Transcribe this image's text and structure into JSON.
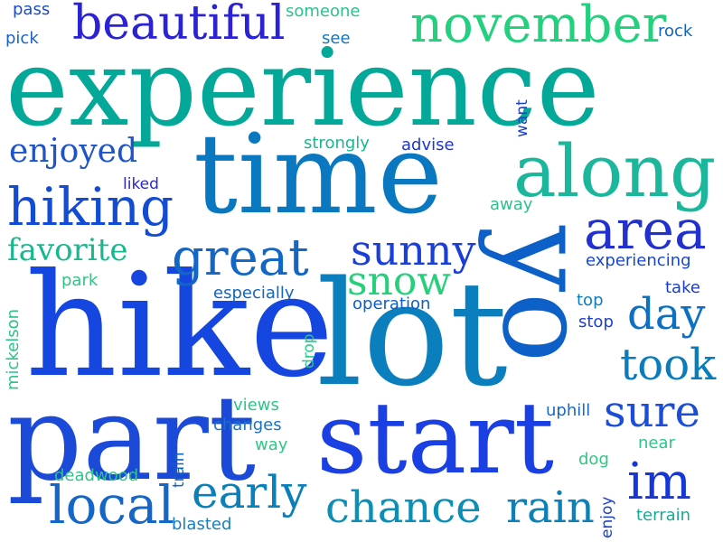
{
  "colors": {
    "teal": "#00a896",
    "teal_light": "#19c28a",
    "green": "#2ed27a",
    "blue": "#0050c8",
    "blue_deep": "#1a2fd6",
    "indigo": "#2a1ed0",
    "sky": "#0a7fbf",
    "mint": "#20c070"
  },
  "words": [
    {
      "id": "experience",
      "text": "experience"
    },
    {
      "id": "time",
      "text": "time"
    },
    {
      "id": "hike",
      "text": "hike"
    },
    {
      "id": "lot",
      "text": "lot"
    },
    {
      "id": "part",
      "text": "part"
    },
    {
      "id": "start",
      "text": "start"
    },
    {
      "id": "yo",
      "text": "yo"
    },
    {
      "id": "along",
      "text": "along"
    },
    {
      "id": "area",
      "text": "area"
    },
    {
      "id": "november",
      "text": "november"
    },
    {
      "id": "beautiful",
      "text": "beautiful"
    },
    {
      "id": "great",
      "text": "great"
    },
    {
      "id": "hiking",
      "text": "hiking"
    },
    {
      "id": "sunny",
      "text": "sunny"
    },
    {
      "id": "snow",
      "text": "snow"
    },
    {
      "id": "local",
      "text": "local"
    },
    {
      "id": "early",
      "text": "early"
    },
    {
      "id": "chance",
      "text": "chance"
    },
    {
      "id": "rain",
      "text": "rain"
    },
    {
      "id": "im",
      "text": "im"
    },
    {
      "id": "sure",
      "text": "sure"
    },
    {
      "id": "took",
      "text": "took"
    },
    {
      "id": "day",
      "text": "day"
    },
    {
      "id": "enjoyed",
      "text": "enjoyed"
    },
    {
      "id": "favorite",
      "text": "favorite"
    },
    {
      "id": "strongly",
      "text": "strongly"
    },
    {
      "id": "advise",
      "text": "advise"
    },
    {
      "id": "liked",
      "text": "liked"
    },
    {
      "id": "away",
      "text": "away"
    },
    {
      "id": "want",
      "text": "want"
    },
    {
      "id": "experiencing",
      "text": "experiencing"
    },
    {
      "id": "especially",
      "text": "especially"
    },
    {
      "id": "operation",
      "text": "operation"
    },
    {
      "id": "park",
      "text": "park"
    },
    {
      "id": "mickelson",
      "text": "mickelson"
    },
    {
      "id": "drop",
      "text": "drop"
    },
    {
      "id": "top",
      "text": "top"
    },
    {
      "id": "stop",
      "text": "stop"
    },
    {
      "id": "take",
      "text": "take"
    },
    {
      "id": "views",
      "text": "views"
    },
    {
      "id": "changes",
      "text": "changes"
    },
    {
      "id": "way",
      "text": "way"
    },
    {
      "id": "uphill",
      "text": "uphill"
    },
    {
      "id": "near",
      "text": "near"
    },
    {
      "id": "dog",
      "text": "dog"
    },
    {
      "id": "deadwood",
      "text": "deadwood"
    },
    {
      "id": "train",
      "text": "train"
    },
    {
      "id": "blasted",
      "text": "blasted"
    },
    {
      "id": "enjoy",
      "text": "enjoy"
    },
    {
      "id": "terrain",
      "text": "terrain"
    },
    {
      "id": "pass",
      "text": "pass"
    },
    {
      "id": "pick",
      "text": "pick"
    },
    {
      "id": "someone",
      "text": "someone"
    },
    {
      "id": "see",
      "text": "see"
    },
    {
      "id": "rock",
      "text": "rock"
    }
  ]
}
